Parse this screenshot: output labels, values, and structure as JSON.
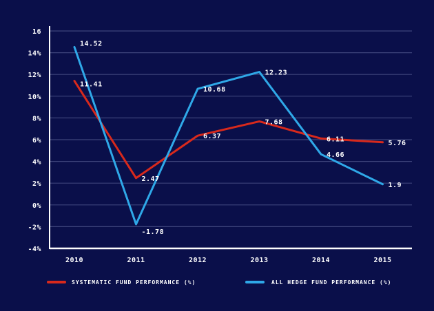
{
  "chart_data": {
    "type": "line",
    "title": "",
    "xlabel": "",
    "ylabel": "",
    "categories": [
      "2010",
      "2011",
      "2012",
      "2013",
      "2014",
      "2015"
    ],
    "ylim": [
      -4,
      16
    ],
    "yticks": [
      {
        "value": 16,
        "label": "16"
      },
      {
        "value": 14,
        "label": "14%"
      },
      {
        "value": 12,
        "label": "12%"
      },
      {
        "value": 10,
        "label": "10%"
      },
      {
        "value": 8,
        "label": "8%"
      },
      {
        "value": 6,
        "label": "6%"
      },
      {
        "value": 4,
        "label": "4%"
      },
      {
        "value": 2,
        "label": "2%"
      },
      {
        "value": 0,
        "label": "0%"
      },
      {
        "value": -2,
        "label": "-2%"
      },
      {
        "value": -4,
        "label": "-4%"
      }
    ],
    "grid": true,
    "legend_position": "bottom",
    "series": [
      {
        "name": "SYSTEMATIC FUND PERFORMANCE (%)",
        "color": "#d8291c",
        "values": [
          11.41,
          2.47,
          6.37,
          7.68,
          6.11,
          5.76
        ],
        "labels": [
          "11.41",
          "2.47",
          "6.37",
          "7.68",
          "6.11",
          "5.76"
        ]
      },
      {
        "name": "ALL HEDGE FUND PERFORMANCE (%)",
        "color": "#2fa8e8",
        "values": [
          14.52,
          -1.78,
          10.68,
          12.23,
          4.66,
          1.9
        ],
        "labels": [
          "14.52",
          "-1.78",
          "10.68",
          "12.23",
          "4.66",
          "1.9"
        ]
      }
    ]
  }
}
